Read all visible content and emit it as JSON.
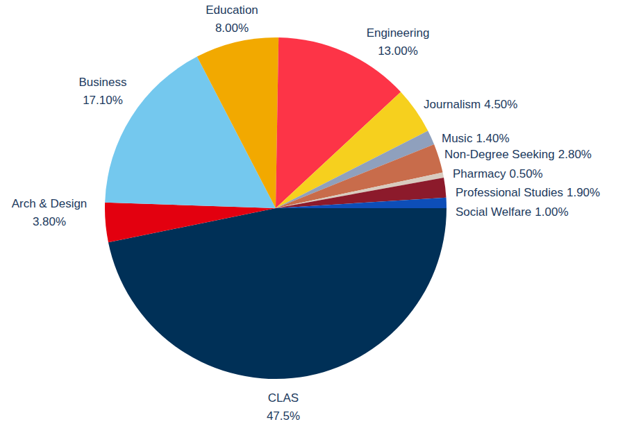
{
  "chart_data": {
    "type": "pie",
    "categories": [
      "CLAS",
      "Arch & Design",
      "Business",
      "Education",
      "Engineering",
      "Journalism",
      "Music",
      "Non-Degree Seeking",
      "Pharmacy",
      "Professional Studies",
      "Social Welfare"
    ],
    "values": [
      47.5,
      3.8,
      17.1,
      8,
      13,
      4.5,
      1.4,
      2.8,
      0.5,
      1.9,
      1
    ],
    "value_labels": [
      "47.5%",
      "3.80%",
      "17.10%",
      "8.00%",
      "13.00%",
      "4.50%",
      "1.40%",
      "2.80%",
      "0.50%",
      "1.90%",
      "1.00%"
    ],
    "colors": [
      "#003057",
      "#e3000f",
      "#74c8ee",
      "#f2a900",
      "#fd3447",
      "#f6d01e",
      "#8fa0bd",
      "#c86c4b",
      "#d8cbbf",
      "#8c1a2b",
      "#0d4eb8"
    ],
    "data_labels": true
  }
}
